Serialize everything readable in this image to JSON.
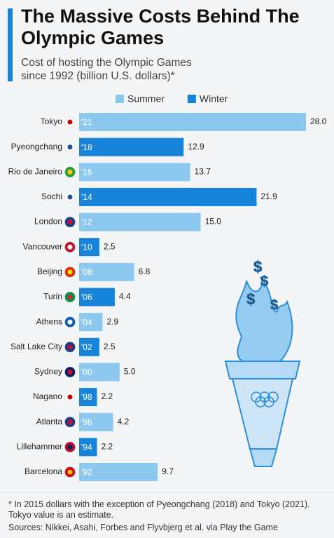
{
  "chart_data": {
    "type": "bar",
    "orientation": "horizontal",
    "title": "The Massive Costs Behind The Olympic Games",
    "subtitle": "Cost of hosting the Olympic Games since 1992 (billion U.S. dollars)*",
    "categories": [
      "Tokyo",
      "Pyeongchang",
      "Rio de Janeiro",
      "Sochi",
      "London",
      "Vancouver",
      "Beijing",
      "Turin",
      "Athens",
      "Salt Lake City",
      "Sydney",
      "Nagano",
      "Atlanta",
      "Lillehammer",
      "Barcelona"
    ],
    "bar_labels": [
      "'21",
      "'18",
      "'16",
      "'14",
      "'12",
      "'10",
      "'08",
      "'06",
      "'04",
      "'02",
      "'00",
      "'98",
      "'96",
      "'94",
      "'92"
    ],
    "series": [
      {
        "name": "Summer",
        "color": "#8cc8f0",
        "values": [
          28.0,
          null,
          13.7,
          null,
          15.0,
          null,
          6.8,
          null,
          2.9,
          null,
          5.0,
          null,
          4.2,
          null,
          9.7
        ],
        "value_labels": [
          "28.0",
          null,
          "13.7",
          null,
          "15.0",
          null,
          "6.8",
          null,
          "2.9",
          null,
          "5.0",
          null,
          "4.2",
          null,
          "9.7"
        ]
      },
      {
        "name": "Winter",
        "color": "#1784da",
        "values": [
          null,
          12.9,
          null,
          21.9,
          null,
          2.5,
          null,
          4.4,
          null,
          2.5,
          null,
          2.2,
          null,
          2.2,
          null
        ],
        "value_labels": [
          null,
          "12.9",
          null,
          "21.9",
          null,
          "2.5",
          null,
          "4.4",
          null,
          "2.5",
          null,
          "2.2",
          null,
          "2.2",
          null
        ]
      }
    ],
    "footnote": "* In 2015 dollars with the exception of Pyeongchang (2018) and Tokyo (2021). Tokyo value is an estimate.",
    "source": "Sources: Nikkei, Asahi, Forbes and Flyvbjerg et al. via Play the Game"
  }
}
